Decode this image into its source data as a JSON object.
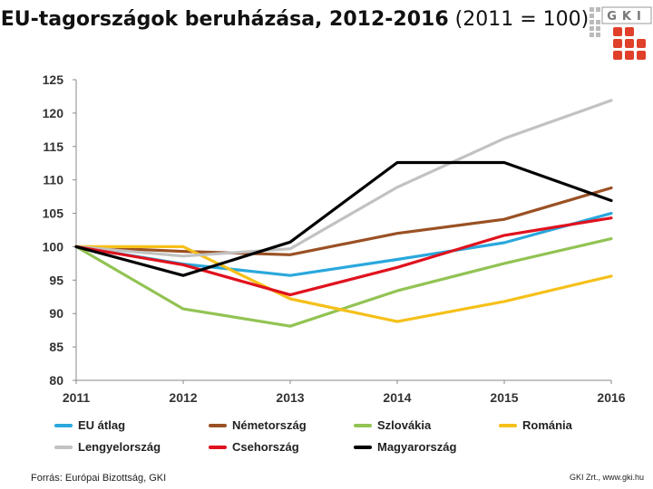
{
  "title": {
    "bold_part": "EU-tagországok beruházása, 2012-2016",
    "normal_part": " (2011 = 100)"
  },
  "logo": {
    "text": "GKI",
    "color": "#e0402a"
  },
  "source": "Forrás: Európai Bizottság, GKI",
  "credit": "GKI Zrt., www.gki.hu",
  "chart_data": {
    "type": "line",
    "title": "EU-tagországok beruházása, 2012-2016 (2011 = 100)",
    "x": [
      "2011",
      "2012",
      "2013",
      "2014",
      "2015",
      "2016"
    ],
    "ylim": [
      80,
      125
    ],
    "yticks": [
      80,
      85,
      90,
      95,
      100,
      105,
      110,
      115,
      120,
      125
    ],
    "grid": false,
    "legend": "bottom",
    "series": [
      {
        "name": "EU átlag",
        "color": "#2aa8dc",
        "values": [
          100,
          97.4,
          95.7,
          98.1,
          100.6,
          105.0
        ]
      },
      {
        "name": "Németország",
        "color": "#9a5124",
        "values": [
          100,
          99.3,
          98.8,
          102.0,
          104.1,
          108.8
        ]
      },
      {
        "name": "Szlovákia",
        "color": "#92c353",
        "values": [
          100,
          90.7,
          88.1,
          93.4,
          97.5,
          101.2
        ]
      },
      {
        "name": "Románia",
        "color": "#f6c01a",
        "values": [
          100,
          100.0,
          92.2,
          88.8,
          91.8,
          95.6
        ]
      },
      {
        "name": "Lengyelország",
        "color": "#c2c2c2",
        "values": [
          100,
          98.6,
          99.7,
          108.9,
          116.2,
          121.9
        ]
      },
      {
        "name": "Csehország",
        "color": "#e0121e",
        "values": [
          100,
          97.3,
          92.8,
          96.9,
          101.7,
          104.3
        ]
      },
      {
        "name": "Magyarország",
        "color": "#000000",
        "values": [
          100,
          95.7,
          100.7,
          112.6,
          112.6,
          106.9
        ]
      }
    ]
  }
}
